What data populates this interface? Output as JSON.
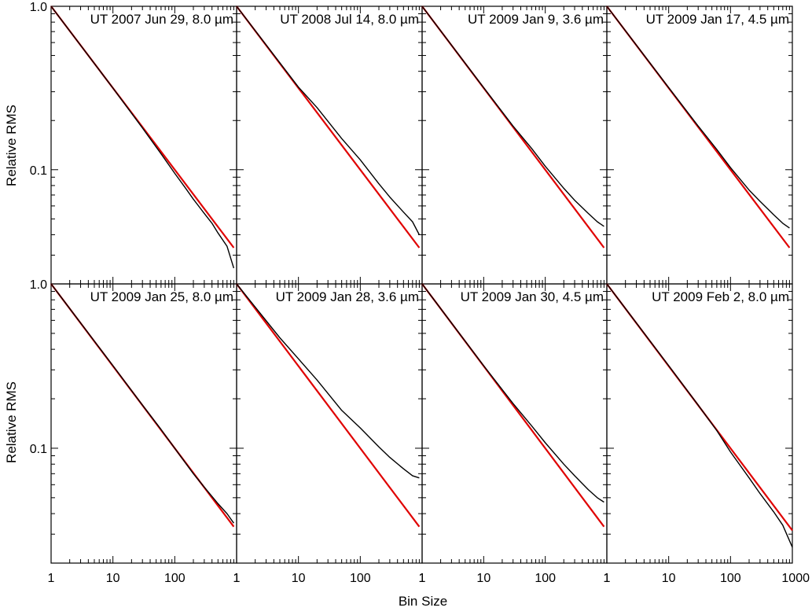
{
  "figure": {
    "ylabel": "Relative RMS",
    "xlabel": "Bin Size"
  },
  "chart_data": [
    {
      "type": "line",
      "title": "UT 2007 Jun 29, 8.0 µm",
      "xscale": "log",
      "yscale": "log",
      "xlim": [
        1,
        1000
      ],
      "ylim": [
        0.02,
        1.0
      ],
      "series": [
        {
          "color": "#000000",
          "x": [
            1,
            10,
            30,
            60,
            100,
            150,
            200,
            300,
            400,
            500,
            700,
            900
          ],
          "y": [
            1.0,
            0.316,
            0.18,
            0.125,
            0.095,
            0.077,
            0.066,
            0.054,
            0.047,
            0.041,
            0.034,
            0.025
          ]
        },
        {
          "color": "#e00000",
          "x": [
            1,
            900
          ],
          "y": [
            1.0,
            0.0333
          ]
        }
      ]
    },
    {
      "type": "line",
      "title": "UT 2008 Jul 14, 8.0 µm",
      "xscale": "log",
      "yscale": "log",
      "xlim": [
        1,
        1000
      ],
      "ylim": [
        0.02,
        1.0
      ],
      "series": [
        {
          "color": "#000000",
          "x": [
            1,
            10,
            20,
            50,
            100,
            200,
            300,
            500,
            700,
            900
          ],
          "y": [
            1.0,
            0.32,
            0.24,
            0.155,
            0.115,
            0.082,
            0.068,
            0.055,
            0.048,
            0.04
          ]
        },
        {
          "color": "#e00000",
          "x": [
            1,
            900
          ],
          "y": [
            1.0,
            0.0333
          ]
        }
      ]
    },
    {
      "type": "line",
      "title": "UT 2009 Jan 9, 3.6 µm",
      "xscale": "log",
      "yscale": "log",
      "xlim": [
        1,
        1000
      ],
      "ylim": [
        0.02,
        1.0
      ],
      "series": [
        {
          "color": "#000000",
          "x": [
            1,
            10,
            30,
            60,
            100,
            200,
            300,
            500,
            700,
            900
          ],
          "y": [
            1.0,
            0.318,
            0.185,
            0.135,
            0.105,
            0.077,
            0.065,
            0.054,
            0.048,
            0.045
          ]
        },
        {
          "color": "#e00000",
          "x": [
            1,
            900
          ],
          "y": [
            1.0,
            0.0333
          ]
        }
      ]
    },
    {
      "type": "line",
      "title": "UT 2009 Jan 17, 4.5 µm",
      "xscale": "log",
      "yscale": "log",
      "xlim": [
        1,
        1000
      ],
      "ylim": [
        0.02,
        1.0
      ],
      "series": [
        {
          "color": "#000000",
          "x": [
            1,
            10,
            30,
            60,
            100,
            200,
            300,
            500,
            700,
            900
          ],
          "y": [
            1.0,
            0.318,
            0.185,
            0.133,
            0.103,
            0.075,
            0.064,
            0.053,
            0.047,
            0.044
          ]
        },
        {
          "color": "#e00000",
          "x": [
            1,
            900
          ],
          "y": [
            1.0,
            0.0333
          ]
        }
      ]
    },
    {
      "type": "line",
      "title": "UT 2009 Jan 25, 8.0 µm",
      "xscale": "log",
      "yscale": "log",
      "xlim": [
        1,
        1000
      ],
      "ylim": [
        0.02,
        1.0
      ],
      "series": [
        {
          "color": "#000000",
          "x": [
            1,
            10,
            30,
            60,
            100,
            200,
            300,
            500,
            700,
            900
          ],
          "y": [
            1.0,
            0.318,
            0.183,
            0.13,
            0.1,
            0.07,
            0.058,
            0.046,
            0.04,
            0.035
          ]
        },
        {
          "color": "#e00000",
          "x": [
            1,
            900
          ],
          "y": [
            1.0,
            0.0333
          ]
        }
      ]
    },
    {
      "type": "line",
      "title": "UT 2009 Jan 28, 3.6 µm",
      "xscale": "log",
      "yscale": "log",
      "xlim": [
        1,
        1000
      ],
      "ylim": [
        0.02,
        1.0
      ],
      "series": [
        {
          "color": "#000000",
          "x": [
            1,
            5,
            10,
            20,
            50,
            100,
            200,
            300,
            500,
            700,
            900
          ],
          "y": [
            1.0,
            0.47,
            0.35,
            0.26,
            0.17,
            0.133,
            0.102,
            0.088,
            0.075,
            0.068,
            0.066
          ]
        },
        {
          "color": "#e00000",
          "x": [
            1,
            900
          ],
          "y": [
            1.0,
            0.0333
          ]
        }
      ]
    },
    {
      "type": "line",
      "title": "UT 2009 Jan 30, 4.5 µm",
      "xscale": "log",
      "yscale": "log",
      "xlim": [
        1,
        1000
      ],
      "ylim": [
        0.02,
        1.0
      ],
      "series": [
        {
          "color": "#000000",
          "x": [
            1,
            10,
            30,
            60,
            100,
            200,
            300,
            500,
            700,
            900
          ],
          "y": [
            1.0,
            0.318,
            0.187,
            0.137,
            0.108,
            0.08,
            0.068,
            0.056,
            0.05,
            0.047
          ]
        },
        {
          "color": "#e00000",
          "x": [
            1,
            900
          ],
          "y": [
            1.0,
            0.0333
          ]
        }
      ]
    },
    {
      "type": "line",
      "title": "UT 2009 Feb 2, 8.0 µm",
      "xscale": "log",
      "yscale": "log",
      "xlim": [
        1,
        1000
      ],
      "ylim": [
        0.02,
        1.0
      ],
      "series": [
        {
          "color": "#000000",
          "x": [
            1,
            10,
            30,
            60,
            100,
            200,
            300,
            500,
            700,
            1000
          ],
          "y": [
            1.0,
            0.318,
            0.183,
            0.128,
            0.095,
            0.066,
            0.053,
            0.041,
            0.034,
            0.025
          ]
        },
        {
          "color": "#e00000",
          "x": [
            1,
            1000
          ],
          "y": [
            1.0,
            0.0316
          ]
        }
      ]
    }
  ]
}
